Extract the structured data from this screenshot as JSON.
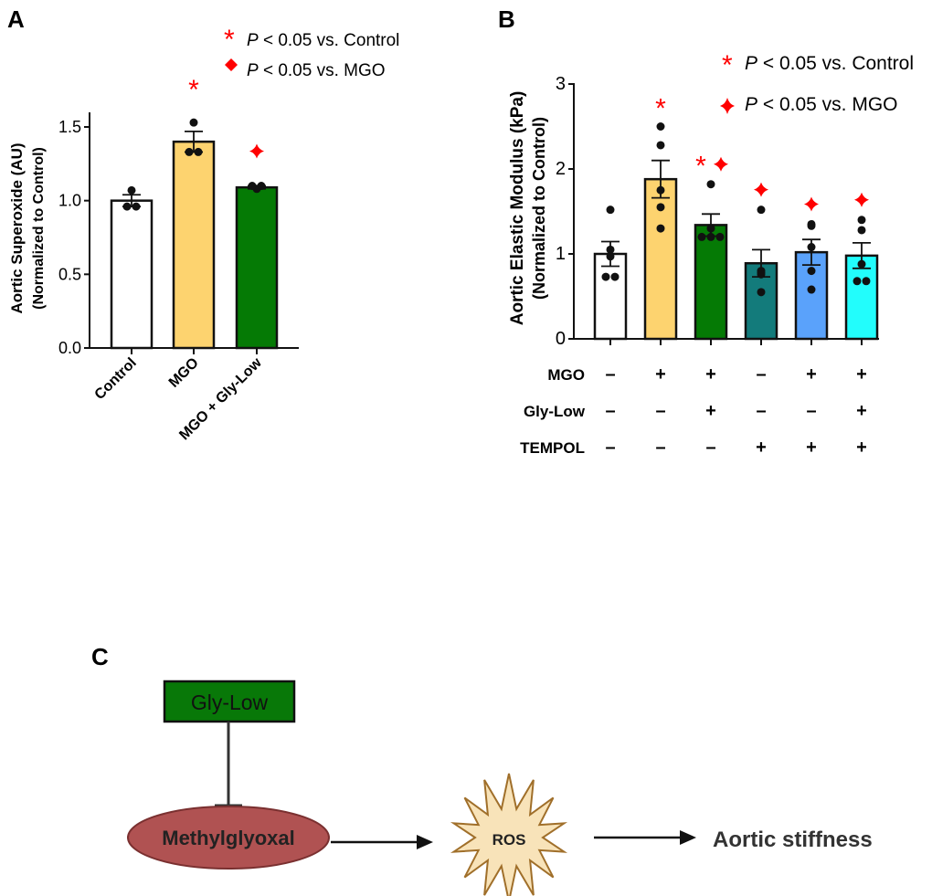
{
  "panel_labels": {
    "a": "A",
    "b": "B",
    "c": "C"
  },
  "legend": {
    "vs_control": {
      "symbol": "*",
      "p": "P",
      "text": " < 0.05 vs. Control"
    },
    "vs_mgo": {
      "symbol": "diamond",
      "p": "P",
      "text": " < 0.05 vs. MGO"
    }
  },
  "colors": {
    "significance": "#ff0000",
    "control": "#ffffff",
    "mgo": "#fdd36f",
    "mgo_gly": "#057a05",
    "tempol": "#137b7b",
    "mgo_tempol": "#5aa2fb",
    "all": "#22fdfc"
  },
  "chart_data": [
    {
      "type": "bar",
      "ylabel": "Aortic Superoxide (AU)",
      "ylabel2": "(Normalized to Control)",
      "ylim": [
        0,
        1.6
      ],
      "yticks": [
        "0.0",
        "0.5",
        "1.0",
        "1.5"
      ],
      "categories": [
        "Control",
        "MGO",
        "MGO + Gly-Low"
      ],
      "values": [
        1.0,
        1.4,
        1.09
      ],
      "sem": [
        0.04,
        0.07,
        0.01
      ],
      "points": [
        [
          1.07,
          0.96,
          0.96
        ],
        [
          1.53,
          1.33,
          1.33
        ],
        [
          1.08,
          1.1,
          1.1
        ]
      ],
      "significance": [
        [],
        [
          "*"
        ],
        [
          "diamond"
        ]
      ]
    },
    {
      "type": "bar",
      "ylabel": "Aortic Elastic Modulus (kPa)",
      "ylabel2": "(Normalized to Control)",
      "ylim": [
        0,
        3
      ],
      "yticks": [
        "0",
        "1",
        "2",
        "3"
      ],
      "values": [
        1.0,
        1.88,
        1.34,
        0.89,
        1.02,
        0.98
      ],
      "sem": [
        0.145,
        0.22,
        0.13,
        0.16,
        0.15,
        0.15
      ],
      "points": [
        [
          1.52,
          1.05,
          0.97,
          0.73,
          0.73
        ],
        [
          2.5,
          2.28,
          1.75,
          1.55,
          1.3
        ],
        [
          1.82,
          1.3,
          1.2,
          1.2,
          1.2
        ],
        [
          1.52,
          0.8,
          0.78,
          0.76,
          0.55
        ],
        [
          1.35,
          1.33,
          1.08,
          0.8,
          0.58
        ],
        [
          1.4,
          1.28,
          0.88,
          0.68,
          0.68
        ]
      ],
      "significance": [
        [],
        [
          "*"
        ],
        [
          "*",
          "diamond"
        ],
        [
          "diamond"
        ],
        [
          "diamond"
        ],
        [
          "diamond"
        ]
      ],
      "treatment_table": [
        {
          "label": "MGO",
          "values": [
            "–",
            "+",
            "+",
            "–",
            "+",
            "+"
          ]
        },
        {
          "label": "Gly-Low",
          "values": [
            "–",
            "–",
            "+",
            "–",
            "–",
            "+"
          ]
        },
        {
          "label": "TEMPOL",
          "values": [
            "–",
            "–",
            "–",
            "+",
            "+",
            "+"
          ]
        }
      ]
    }
  ],
  "diagram": {
    "inhibitor": "Gly-Low",
    "source": "Methylglyoxal",
    "mediator": "ROS",
    "outcome": "Aortic stiffness"
  }
}
